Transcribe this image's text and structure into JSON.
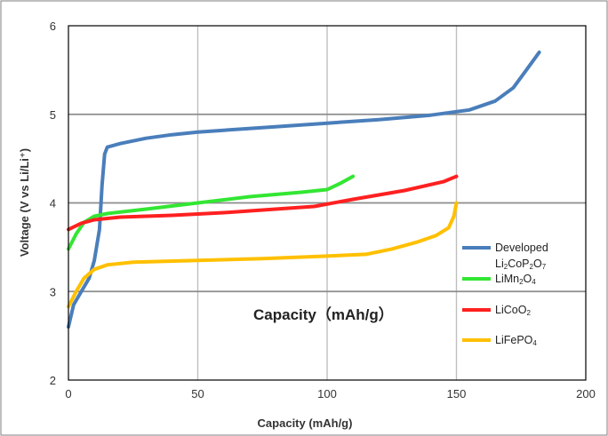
{
  "chart_data": {
    "type": "line",
    "title": "",
    "xlabel": "Capacity (mAh/g)",
    "ylabel": "Voltage (V vs Li/Li⁺)",
    "annotation": "Capacity（mAh/g）",
    "xlim": [
      0,
      200
    ],
    "ylim": [
      2,
      6
    ],
    "xticks": [
      "0",
      "50",
      "100",
      "150",
      "200"
    ],
    "yticks": [
      "2",
      "3",
      "4",
      "5",
      "6"
    ],
    "grid": true,
    "legend_position": "lower-right",
    "series": [
      {
        "name": "Developed Li₂CoP₂O₇",
        "color": "#4a7ebb",
        "points": [
          [
            0,
            2.6
          ],
          [
            2,
            2.85
          ],
          [
            5,
            3.0
          ],
          [
            8,
            3.15
          ],
          [
            10,
            3.35
          ],
          [
            12,
            3.7
          ],
          [
            13,
            4.2
          ],
          [
            14,
            4.55
          ],
          [
            15,
            4.63
          ],
          [
            20,
            4.67
          ],
          [
            30,
            4.73
          ],
          [
            40,
            4.77
          ],
          [
            50,
            4.8
          ],
          [
            60,
            4.82
          ],
          [
            80,
            4.86
          ],
          [
            100,
            4.9
          ],
          [
            120,
            4.94
          ],
          [
            140,
            4.99
          ],
          [
            155,
            5.05
          ],
          [
            165,
            5.15
          ],
          [
            172,
            5.3
          ],
          [
            177,
            5.5
          ],
          [
            182,
            5.7
          ]
        ]
      },
      {
        "name": "LiMn₂O₄",
        "color": "#33e633",
        "points": [
          [
            0,
            3.48
          ],
          [
            3,
            3.65
          ],
          [
            6,
            3.78
          ],
          [
            10,
            3.85
          ],
          [
            15,
            3.88
          ],
          [
            30,
            3.93
          ],
          [
            50,
            4.0
          ],
          [
            70,
            4.07
          ],
          [
            90,
            4.12
          ],
          [
            100,
            4.15
          ],
          [
            105,
            4.22
          ],
          [
            110,
            4.3
          ]
        ]
      },
      {
        "name": "LiCoO₂",
        "color": "#ff2020",
        "points": [
          [
            0,
            3.7
          ],
          [
            5,
            3.77
          ],
          [
            10,
            3.81
          ],
          [
            20,
            3.84
          ],
          [
            40,
            3.86
          ],
          [
            60,
            3.89
          ],
          [
            80,
            3.93
          ],
          [
            95,
            3.96
          ],
          [
            110,
            4.04
          ],
          [
            130,
            4.14
          ],
          [
            145,
            4.24
          ],
          [
            150,
            4.3
          ]
        ]
      },
      {
        "name": "LiFePO₄",
        "color": "#ffc000",
        "points": [
          [
            0,
            2.83
          ],
          [
            3,
            3.0
          ],
          [
            6,
            3.15
          ],
          [
            10,
            3.25
          ],
          [
            15,
            3.3
          ],
          [
            25,
            3.33
          ],
          [
            50,
            3.35
          ],
          [
            75,
            3.37
          ],
          [
            100,
            3.4
          ],
          [
            115,
            3.42
          ],
          [
            125,
            3.48
          ],
          [
            135,
            3.56
          ],
          [
            142,
            3.63
          ],
          [
            147,
            3.72
          ],
          [
            149,
            3.85
          ],
          [
            150,
            4.0
          ]
        ]
      }
    ]
  }
}
